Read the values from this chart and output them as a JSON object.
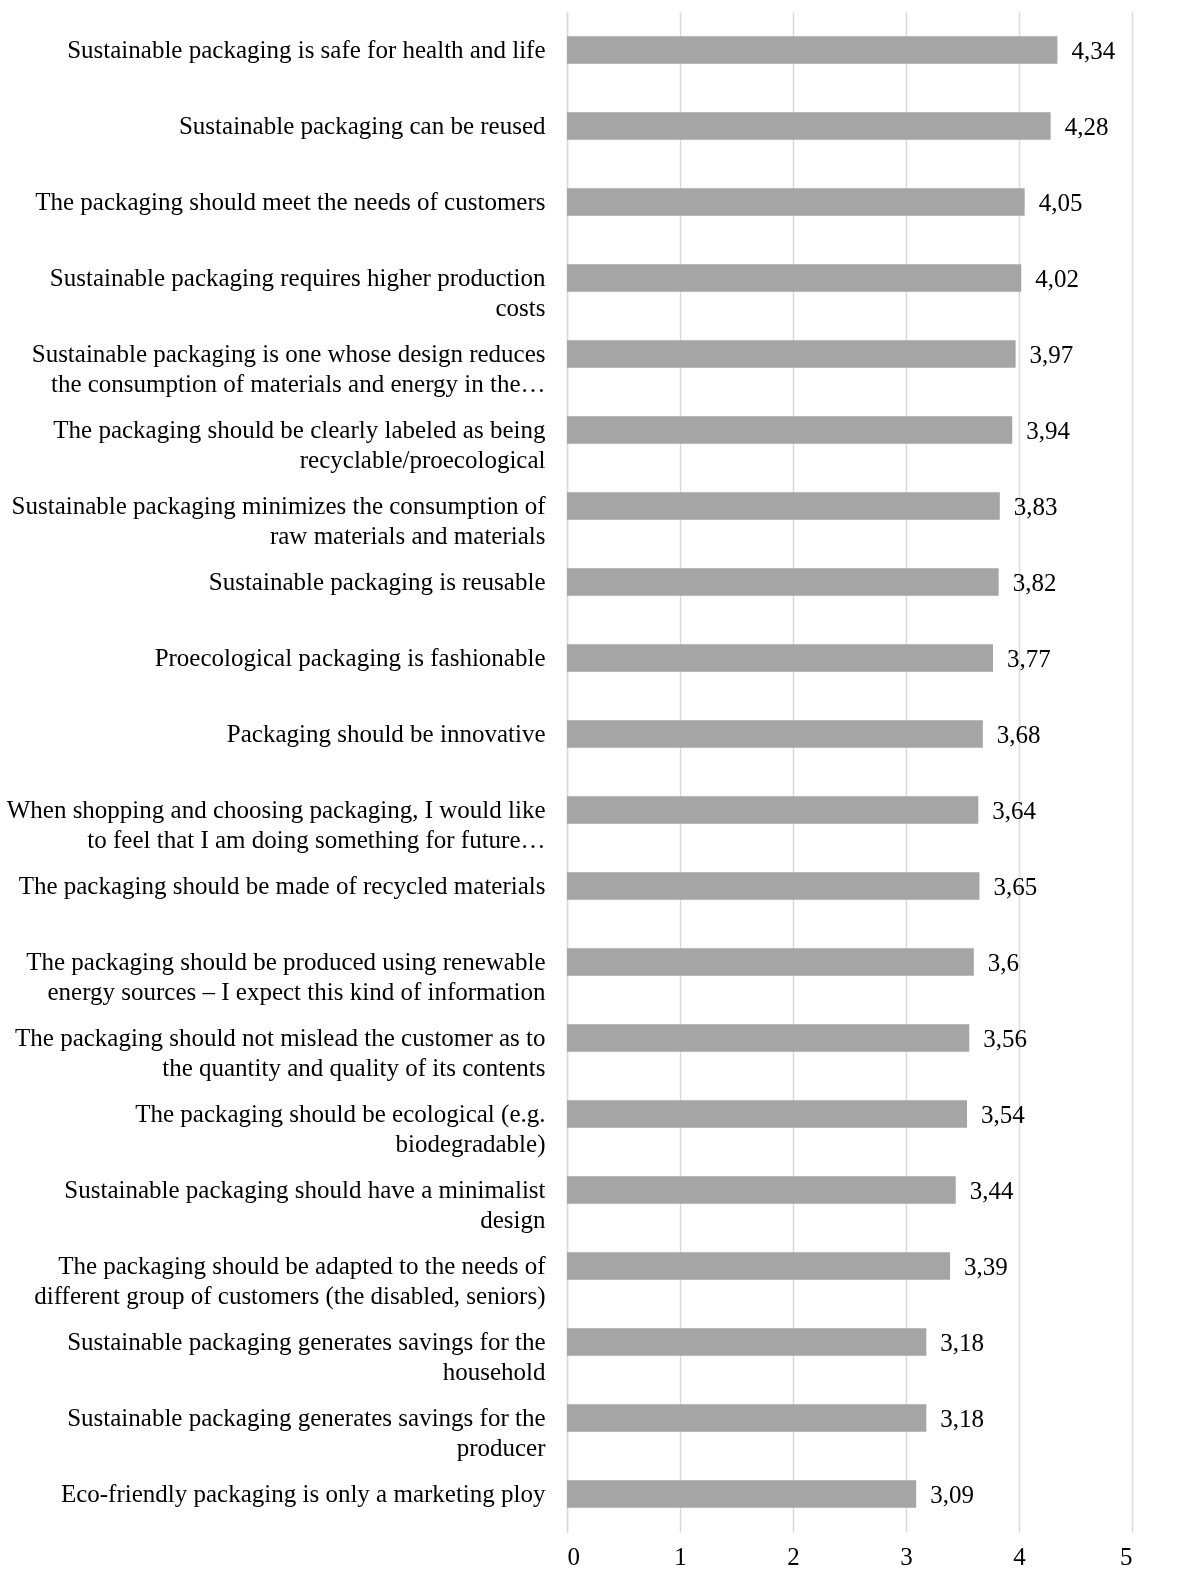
{
  "chart_data": {
    "type": "bar",
    "orientation": "horizontal",
    "categories": [
      "Sustainable packaging is safe for health and life",
      "Sustainable packaging can be reused",
      "The packaging should meet the needs of customers",
      "Sustainable packaging requires higher production costs",
      "Sustainable packaging is one whose design reduces the consumption of materials and energy in the…",
      "The packaging should be clearly labeled as being recyclable/proecological",
      "Sustainable packaging minimizes the consumption of raw materials and materials",
      "Sustainable packaging is reusable",
      "Proecological packaging is fashionable",
      "Packaging should be innovative",
      "When shopping and choosing packaging, I would like to feel that I am doing something for future…",
      "The packaging should be made of recycled materials",
      "The packaging should be produced using renewable energy sources – I expect this kind of information",
      "The packaging should not mislead the customer as to the quantity and quality of its contents",
      "The packaging should be ecological (e.g. biodegradable)",
      "Sustainable packaging should have a minimalist design",
      "The packaging should be adapted to the needs of different group of customers (the disabled, seniors)",
      "Sustainable packaging generates savings for the household",
      "Sustainable packaging generates savings for the producer",
      "Eco-friendly packaging is only a marketing ploy"
    ],
    "values": [
      4.34,
      4.28,
      4.05,
      4.02,
      3.97,
      3.94,
      3.83,
      3.82,
      3.77,
      3.68,
      3.64,
      3.65,
      3.6,
      3.56,
      3.54,
      3.44,
      3.39,
      3.18,
      3.18,
      3.09
    ],
    "value_labels": [
      "4,34",
      "4,28",
      "4,05",
      "4,02",
      "3,97",
      "3,94",
      "3,83",
      "3,82",
      "3,77",
      "3,68",
      "3,64",
      "3,65",
      "3,6",
      "3,56",
      "3,54",
      "3,44",
      "3,39",
      "3,18",
      "3,18",
      "3,09"
    ],
    "color": "#a5a5a5",
    "xlim": [
      0,
      5
    ],
    "xticks": [
      0,
      1,
      2,
      3,
      4,
      5
    ],
    "grid": "x"
  }
}
